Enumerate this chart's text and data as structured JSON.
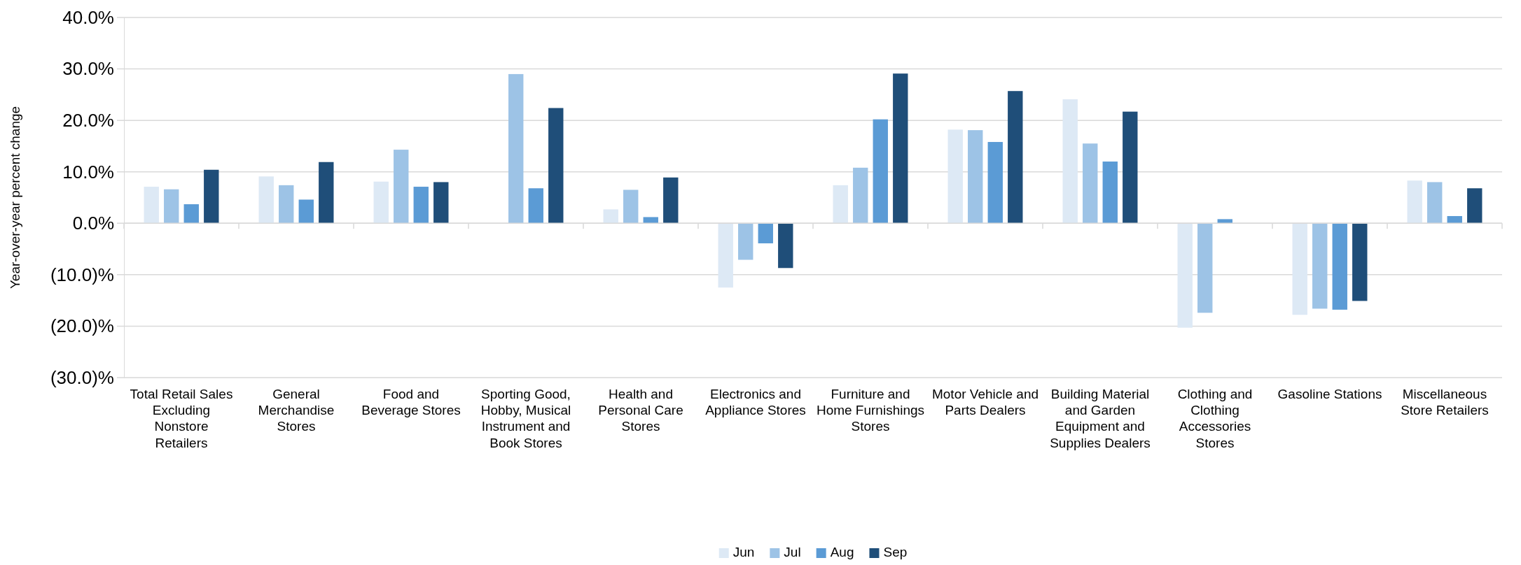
{
  "chart_data": {
    "type": "bar",
    "ylabel": "Year-over-year percent change",
    "categories": [
      "Total Retail Sales Excluding Nonstore Retailers",
      "General Merchandise Stores",
      "Food and Beverage Stores",
      "Sporting Good, Hobby, Musical Instrument and Book Stores",
      "Health and Personal Care Stores",
      "Electronics and Appliance Stores",
      "Furniture and Home Furnishings Stores",
      "Motor Vehicle and Parts Dealers",
      "Building Material and Garden Equipment and Supplies Dealers",
      "Clothing and Clothing Accessories Stores",
      "Gasoline Stations",
      "Miscellaneous Store Retailers"
    ],
    "series": [
      {
        "name": "Jun",
        "color": "#dde9f5",
        "values": [
          7.1,
          9.1,
          8.1,
          null,
          2.7,
          -12.5,
          7.4,
          18.2,
          24.1,
          -20.3,
          -17.8,
          8.3
        ]
      },
      {
        "name": "Jul",
        "color": "#9dc3e6",
        "values": [
          6.6,
          7.4,
          14.3,
          29.0,
          6.5,
          -7.1,
          10.8,
          18.1,
          15.5,
          -17.4,
          -16.6,
          8.0
        ]
      },
      {
        "name": "Aug",
        "color": "#5b9bd5",
        "values": [
          3.7,
          4.6,
          7.1,
          6.8,
          1.2,
          -3.9,
          20.2,
          15.8,
          12.0,
          0.8,
          -16.8,
          1.4
        ]
      },
      {
        "name": "Sep",
        "color": "#1f4e79",
        "values": [
          10.4,
          11.9,
          8.0,
          22.4,
          8.9,
          -8.7,
          29.1,
          25.7,
          21.7,
          null,
          -15.1,
          6.8
        ]
      }
    ],
    "ylim": [
      -30,
      40
    ],
    "yticks": [
      {
        "value": -30,
        "label": "(30.0)%"
      },
      {
        "value": -20,
        "label": "(20.0)%"
      },
      {
        "value": -10,
        "label": "(10.0)%"
      },
      {
        "value": 0,
        "label": "0.0%"
      },
      {
        "value": 10,
        "label": "10.0%"
      },
      {
        "value": 20,
        "label": "20.0%"
      },
      {
        "value": 30,
        "label": "30.0%"
      },
      {
        "value": 40,
        "label": "40.0%"
      }
    ],
    "grid": "y",
    "legend": "bottom"
  }
}
